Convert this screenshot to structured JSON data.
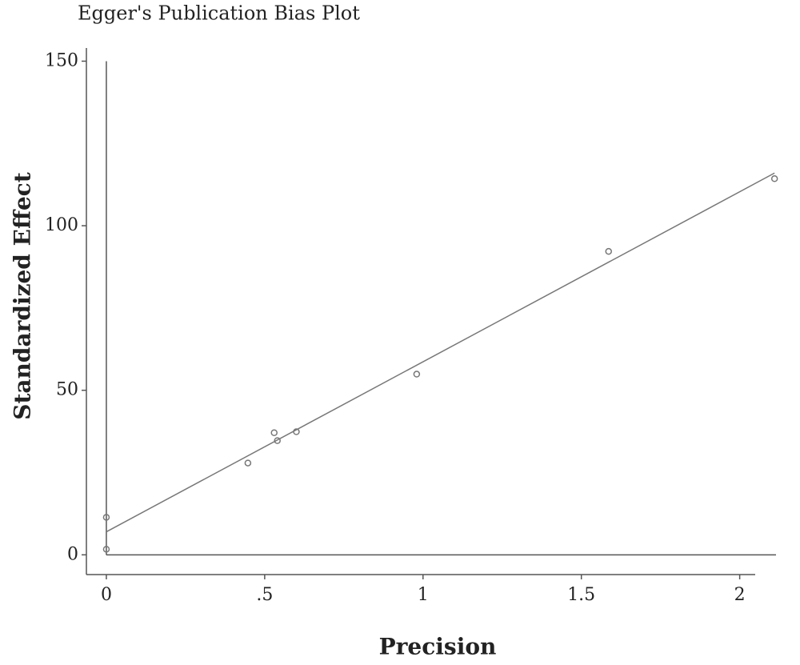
{
  "chart_data": {
    "type": "scatter",
    "title": "Egger's Publication Bias Plot",
    "x_label": "Precision",
    "y_label": "Standardized Effect",
    "x": [
      0,
      0,
      0.447,
      0.53,
      0.54,
      0.6,
      0.98,
      1.586,
      2.11
    ],
    "values": [
      1.7,
      11.4,
      27.9,
      37.1,
      34.7,
      37.4,
      54.9,
      92.2,
      114.3
    ],
    "color": "#777777",
    "regression": {
      "x": [
        0,
        2.11
      ],
      "values": [
        7,
        116
      ],
      "color": "#777777"
    },
    "reference_lines": {
      "x": 0,
      "y": 0
    },
    "xlim": [
      -0.063,
      2.15
    ],
    "ylim": [
      -6,
      154
    ],
    "xticks": [
      0,
      {
        "value": 0.5,
        "label": ".5"
      },
      1,
      1.5,
      2
    ],
    "yticks": [
      0,
      50,
      100,
      150
    ]
  }
}
